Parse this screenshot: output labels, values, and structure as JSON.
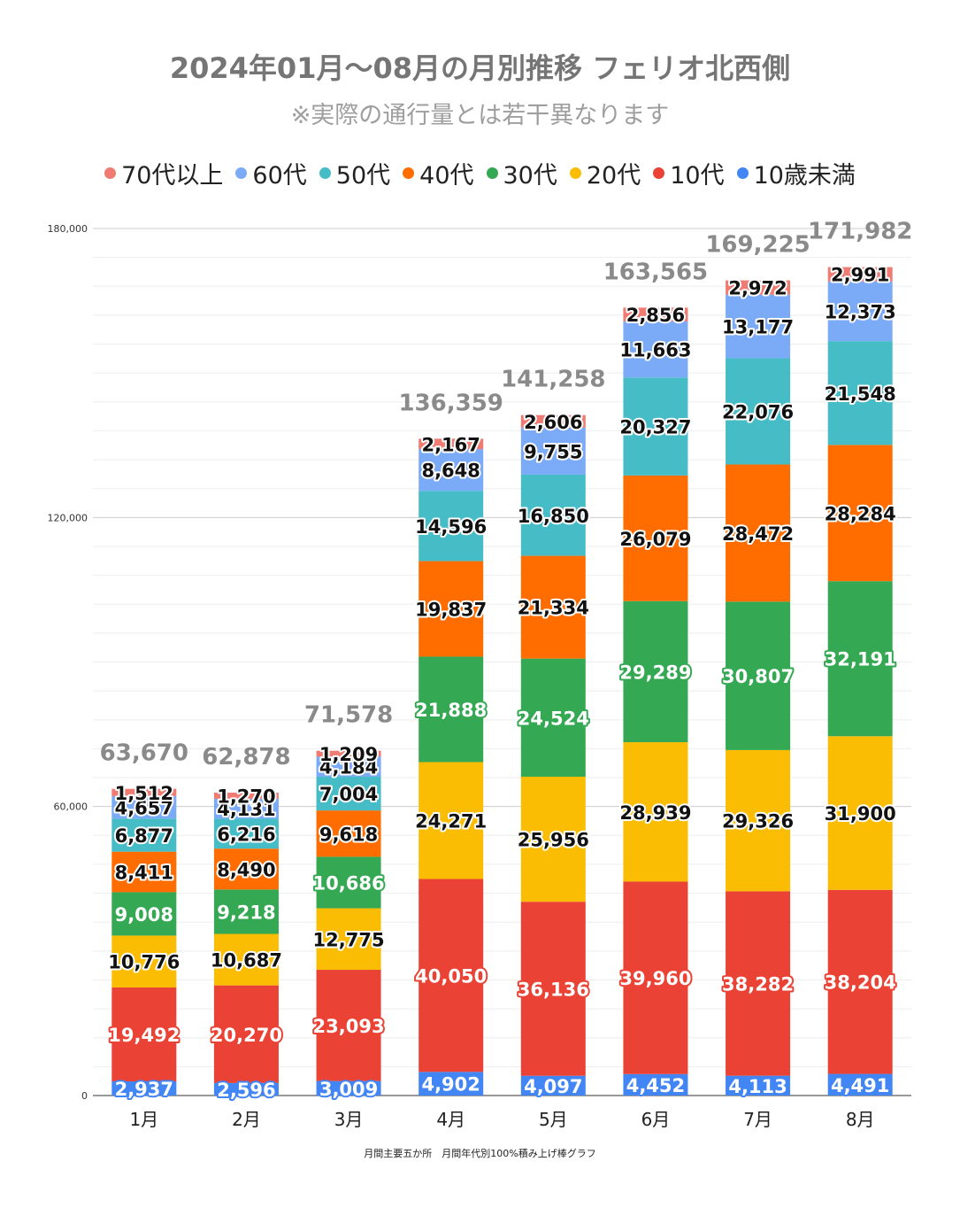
{
  "chart_data": {
    "type": "bar",
    "stacked": true,
    "title": "2024年01月〜08月の月別推移  フェリオ北西側",
    "subtitle": "※実際の通行量とは若干異なります",
    "footnote": "月間主要五か所　月間年代別100%積み上げ棒グラフ",
    "categories": [
      "1月",
      "2月",
      "3月",
      "4月",
      "5月",
      "6月",
      "7月",
      "8月"
    ],
    "series": [
      {
        "name": "10歳未満",
        "color": "#4285f4",
        "label_fill": "#ffffff",
        "label_stroke": "#4285f4",
        "values": [
          2937,
          2596,
          3009,
          4902,
          4097,
          4452,
          4113,
          4491
        ]
      },
      {
        "name": "10代",
        "color": "#ea4335",
        "label_fill": "#ffffff",
        "label_stroke": "#ea4335",
        "values": [
          19492,
          20270,
          23093,
          40050,
          36136,
          39960,
          38282,
          38204
        ]
      },
      {
        "name": "20代",
        "color": "#fbbc04",
        "label_fill": "#111111",
        "label_stroke": "#ffffff",
        "values": [
          10776,
          10687,
          12775,
          24271,
          25956,
          28939,
          29326,
          31900
        ]
      },
      {
        "name": "30代",
        "color": "#34a853",
        "label_fill": "#ffffff",
        "label_stroke": "#34a853",
        "values": [
          9008,
          9218,
          10686,
          21888,
          24524,
          29289,
          30807,
          32191
        ]
      },
      {
        "name": "40代",
        "color": "#ff6d01",
        "label_fill": "#111111",
        "label_stroke": "#ffffff",
        "values": [
          8411,
          8490,
          9618,
          19837,
          21334,
          26079,
          28472,
          28284
        ]
      },
      {
        "name": "50代",
        "color": "#46bdc6",
        "label_fill": "#111111",
        "label_stroke": "#ffffff",
        "values": [
          6877,
          6216,
          7004,
          14596,
          16850,
          20327,
          22076,
          21548
        ]
      },
      {
        "name": "60代",
        "color": "#7baaf7",
        "label_fill": "#111111",
        "label_stroke": "#ffffff",
        "values": [
          4657,
          4131,
          4184,
          8648,
          9755,
          11663,
          13177,
          12373
        ]
      },
      {
        "name": "70代以上",
        "color": "#f07b72",
        "label_fill": "#111111",
        "label_stroke": "#ffffff",
        "values": [
          1512,
          1270,
          1209,
          2167,
          2606,
          2856,
          2972,
          2991
        ]
      }
    ],
    "totals": [
      63670,
      62878,
      71578,
      136359,
      141258,
      163565,
      169225,
      171982
    ],
    "legend_order": [
      "70代以上",
      "60代",
      "50代",
      "40代",
      "30代",
      "20代",
      "10代",
      "10歳未満"
    ],
    "ylim": [
      0,
      180000
    ],
    "yticks": [
      0,
      60000,
      120000,
      180000
    ],
    "ytick_labels": [
      "0",
      "60,000",
      "120,000",
      "180,000"
    ],
    "minor_grid_step": 6000,
    "xlabel": "",
    "ylabel": "",
    "legend_position": "top"
  }
}
